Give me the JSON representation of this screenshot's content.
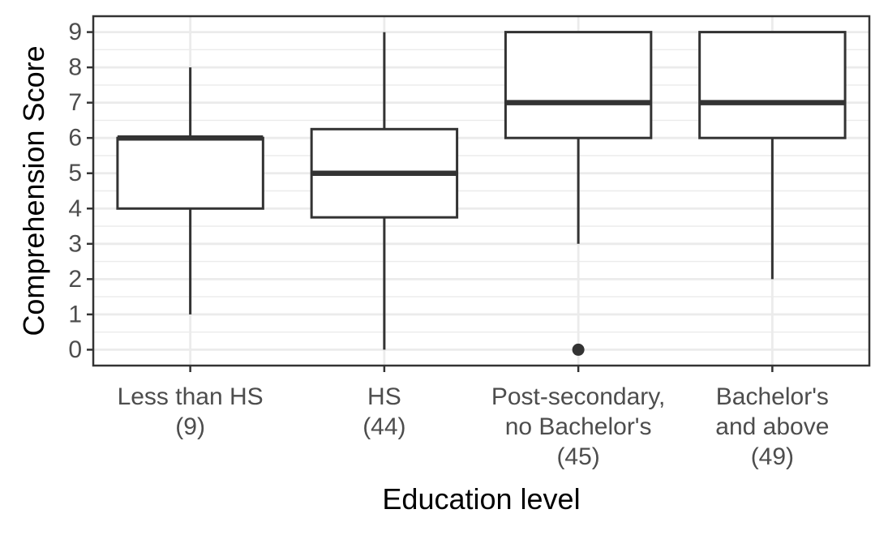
{
  "chart_data": {
    "type": "boxplot",
    "title": "",
    "xlabel": "Education level",
    "ylabel": "Comprehension Score",
    "ylim": [
      -0.45,
      9.45
    ],
    "yticks": [
      "0",
      "1",
      "2",
      "3",
      "4",
      "5",
      "6",
      "7",
      "8",
      "9"
    ],
    "grid": true,
    "categories": [
      {
        "label": [
          "Less than HS",
          "(9)"
        ],
        "min": 1,
        "q1": 4,
        "median": 6,
        "q3": 6,
        "max": 8,
        "outliers": []
      },
      {
        "label": [
          "HS",
          "(44)"
        ],
        "min": 0,
        "q1": 3.75,
        "median": 5,
        "q3": 6.25,
        "max": 9,
        "outliers": []
      },
      {
        "label": [
          "Post-secondary,",
          "no Bachelor's",
          "(45)"
        ],
        "min": 3,
        "q1": 6,
        "median": 7,
        "q3": 9,
        "max": 9,
        "outliers": [
          0
        ]
      },
      {
        "label": [
          "Bachelor's",
          "and above",
          "(49)"
        ],
        "min": 2,
        "q1": 6,
        "median": 7,
        "q3": 9,
        "max": 9,
        "outliers": []
      }
    ],
    "colors": {
      "box_fill": "#ffffff",
      "box_line": "#333333",
      "grid_major": "#ebebeb",
      "panel_border": "#333333",
      "tick_text": "#4d4d4d",
      "title_text": "#000000"
    }
  }
}
